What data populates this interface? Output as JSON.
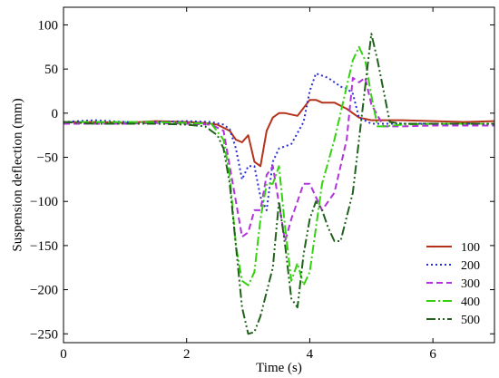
{
  "chart_data": {
    "type": "line",
    "title": "",
    "xlabel": "Time (s)",
    "ylabel": "Suspension deflection (mm)",
    "xlim": [
      0,
      7
    ],
    "ylim": [
      -260,
      120
    ],
    "xticks": [
      0,
      2,
      4,
      6
    ],
    "yticks": [
      -250,
      -200,
      -150,
      -100,
      -50,
      0,
      50,
      100
    ],
    "grid": false,
    "legend_position": "bottom-right",
    "series": [
      {
        "name": "100",
        "color": "#b5331b",
        "dash": "solid",
        "x": [
          0,
          0.5,
          1.0,
          1.5,
          2.0,
          2.3,
          2.5,
          2.7,
          2.8,
          2.9,
          3.0,
          3.1,
          3.2,
          3.3,
          3.4,
          3.5,
          3.6,
          3.8,
          4.0,
          4.1,
          4.2,
          4.4,
          4.6,
          4.8,
          5.0,
          5.5,
          6.0,
          6.5,
          7.0
        ],
        "values": [
          -10,
          -10,
          -11,
          -9,
          -10,
          -11,
          -13,
          -20,
          -30,
          -33,
          -25,
          -55,
          -60,
          -20,
          -5,
          0,
          0,
          -3,
          15,
          15,
          12,
          12,
          5,
          -5,
          -8,
          -8,
          -9,
          -10,
          -9
        ]
      },
      {
        "name": "200",
        "color": "#2b2fd6",
        "dash": "2,3",
        "x": [
          0,
          0.5,
          1.0,
          1.5,
          2.0,
          2.4,
          2.6,
          2.7,
          2.8,
          2.9,
          3.0,
          3.1,
          3.2,
          3.3,
          3.4,
          3.5,
          3.7,
          3.9,
          4.0,
          4.1,
          4.3,
          4.5,
          4.6,
          4.7,
          4.8,
          5.0,
          5.5,
          6.0,
          6.5,
          7.0
        ],
        "values": [
          -10,
          -8,
          -10,
          -10,
          -9,
          -10,
          -13,
          -18,
          -40,
          -75,
          -60,
          -60,
          -95,
          -110,
          -55,
          -40,
          -35,
          -10,
          25,
          45,
          40,
          30,
          28,
          22,
          -5,
          -12,
          -12,
          -12,
          -12,
          -12
        ]
      },
      {
        "name": "300",
        "color": "#b132de",
        "dash": "7,4",
        "x": [
          0,
          0.5,
          1.0,
          1.5,
          2.0,
          2.4,
          2.6,
          2.7,
          2.8,
          2.9,
          3.0,
          3.1,
          3.2,
          3.3,
          3.4,
          3.6,
          3.7,
          3.8,
          3.9,
          4.0,
          4.1,
          4.2,
          4.4,
          4.5,
          4.6,
          4.7,
          4.8,
          4.9,
          5.0,
          5.2,
          5.5,
          6.0,
          6.5,
          7.0
        ],
        "values": [
          -12,
          -12,
          -12,
          -11,
          -12,
          -13,
          -20,
          -60,
          -100,
          -140,
          -135,
          -110,
          -110,
          -70,
          -60,
          -145,
          -120,
          -100,
          -80,
          -80,
          -95,
          -110,
          -90,
          -60,
          -30,
          40,
          35,
          40,
          10,
          -15,
          -15,
          -14,
          -14,
          -14
        ]
      },
      {
        "name": "400",
        "color": "#34d10f",
        "dash": "10,3,2,3",
        "x": [
          0,
          0.5,
          1.0,
          1.5,
          2.0,
          2.4,
          2.6,
          2.7,
          2.8,
          2.9,
          3.0,
          3.1,
          3.2,
          3.3,
          3.4,
          3.5,
          3.6,
          3.7,
          3.8,
          3.9,
          4.0,
          4.2,
          4.4,
          4.5,
          4.6,
          4.7,
          4.8,
          4.9,
          5.0,
          5.1,
          5.2,
          5.5,
          6.0,
          6.5,
          7.0
        ],
        "values": [
          -10,
          -10,
          -10,
          -10,
          -11,
          -12,
          -30,
          -70,
          -150,
          -190,
          -195,
          -180,
          -120,
          -80,
          -80,
          -60,
          -130,
          -190,
          -170,
          -195,
          -180,
          -80,
          -30,
          0,
          30,
          60,
          75,
          60,
          20,
          -15,
          -15,
          -13,
          -12,
          -12,
          -12
        ]
      },
      {
        "name": "500",
        "color": "#20621b",
        "dash": "10,3,2,3,2,3",
        "x": [
          0,
          0.5,
          1.0,
          1.5,
          2.0,
          2.3,
          2.5,
          2.6,
          2.7,
          2.8,
          2.9,
          3.0,
          3.1,
          3.2,
          3.4,
          3.5,
          3.6,
          3.7,
          3.8,
          3.9,
          4.0,
          4.1,
          4.2,
          4.3,
          4.4,
          4.5,
          4.7,
          4.8,
          4.9,
          5.0,
          5.1,
          5.3,
          5.5,
          6.0,
          6.5,
          7.0
        ],
        "values": [
          -10,
          -12,
          -12,
          -12,
          -13,
          -15,
          -25,
          -40,
          -80,
          -150,
          -220,
          -250,
          -248,
          -230,
          -175,
          -100,
          -150,
          -210,
          -220,
          -160,
          -120,
          -100,
          -110,
          -130,
          -145,
          -145,
          -90,
          -30,
          30,
          90,
          60,
          -10,
          -12,
          -12,
          -12,
          -12
        ]
      }
    ]
  }
}
